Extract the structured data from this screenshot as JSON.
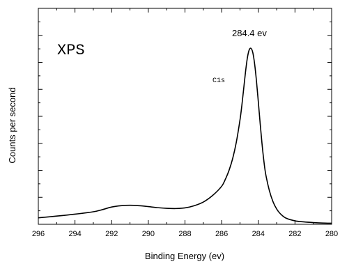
{
  "chart_data": {
    "type": "line",
    "title": "",
    "xlabel": "Binding Energy (ev)",
    "ylabel": "Counts per second",
    "xlim": [
      296,
      280
    ],
    "x_reversed": true,
    "xticks": [
      296,
      294,
      292,
      290,
      288,
      286,
      284,
      282,
      280
    ],
    "ylim": [
      0,
      100
    ],
    "y_tick_labels": false,
    "grid": false,
    "legend": "none",
    "annotations": {
      "panel_label": "XPS",
      "peak_label": "284.4 ev",
      "line_label": "C1s"
    },
    "series": [
      {
        "x": [
          296,
          295,
          294,
          293,
          292.5,
          292,
          291.5,
          291,
          290.5,
          290,
          289.5,
          289,
          288.5,
          288,
          287.5,
          287,
          286.5,
          286,
          285.8,
          285.6,
          285.4,
          285.2,
          285,
          284.9,
          284.8,
          284.7,
          284.6,
          284.5,
          284.4,
          284.3,
          284.2,
          284.1,
          284,
          283.9,
          283.8,
          283.7,
          283.6,
          283.4,
          283.2,
          283,
          282.8,
          282.5,
          282,
          281.5,
          281,
          280.5,
          280
        ],
        "y": [
          3.0,
          3.8,
          4.7,
          5.8,
          6.8,
          8.0,
          8.6,
          8.8,
          8.6,
          8.2,
          7.7,
          7.4,
          7.3,
          7.6,
          8.6,
          10.3,
          13.3,
          17.6,
          20.8,
          24.9,
          30.4,
          38.0,
          48.3,
          54.9,
          62.6,
          70.4,
          76.9,
          80.7,
          81.5,
          79.5,
          74.2,
          66.3,
          56.8,
          46.8,
          37.5,
          29.6,
          23.4,
          15.7,
          10.5,
          7.1,
          4.9,
          2.9,
          1.6,
          1.1,
          0.8,
          0.6,
          0.5
        ]
      }
    ]
  }
}
